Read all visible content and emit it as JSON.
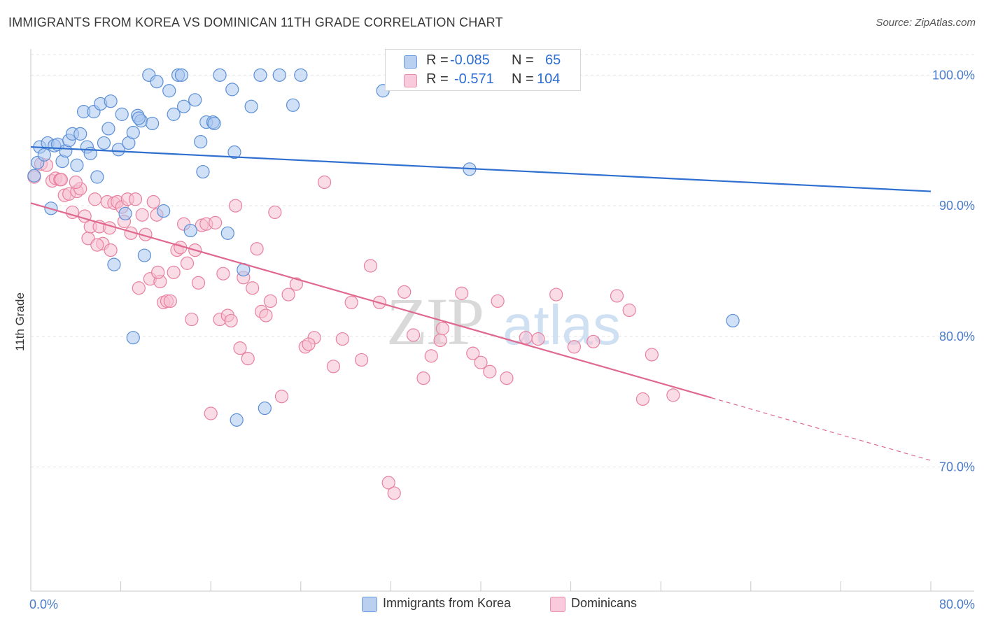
{
  "title": "IMMIGRANTS FROM KOREA VS DOMINICAN 11TH GRADE CORRELATION CHART",
  "source": "Source: ZipAtlas.com",
  "watermark_zip": "ZIP",
  "watermark_atlas": "atlas",
  "legend_top": {
    "rows": [
      {
        "r_label": "R =",
        "r_value": "-0.085",
        "n_label": "N =",
        "n_value": "65"
      },
      {
        "r_label": "R =",
        "r_value": "-0.571",
        "n_label": "N =",
        "n_value": "104"
      }
    ]
  },
  "legend_bottom": {
    "items": [
      {
        "label": "Immigrants from Korea"
      },
      {
        "label": "Dominicans"
      }
    ]
  },
  "chart_data": {
    "type": "scatter",
    "title": "IMMIGRANTS FROM KOREA VS DOMINICAN 11TH GRADE CORRELATION CHART",
    "xlabel": "",
    "ylabel": "11th Grade",
    "xlim": [
      0,
      80
    ],
    "ylim": [
      60.5,
      102
    ],
    "x_tick_labels": [
      "0.0%",
      "80.0%"
    ],
    "y_ticks": [
      70,
      80,
      90,
      100
    ],
    "y_tick_labels": [
      "70.0%",
      "80.0%",
      "90.0%",
      "100.0%"
    ],
    "grid": true,
    "colors": {
      "korea_fill": "#a9c6ee",
      "korea_stroke": "#5b8fd6",
      "korea_line": "#2f6fcf",
      "dom_fill": "#f6bfd1",
      "dom_stroke": "#e8819f",
      "dom_line": "#e0688f",
      "tick_label": "#4a7cc9",
      "grid": "#e4e4e4"
    },
    "series": [
      {
        "name": "Immigrants from Korea",
        "r": -0.085,
        "n": 65,
        "trend": {
          "x0": 0,
          "y0": 94.5,
          "x1": 80,
          "y1": 91.1
        },
        "points": [
          [
            0.3,
            92.3
          ],
          [
            0.6,
            93.3
          ],
          [
            0.8,
            94.5
          ],
          [
            1.2,
            93.9
          ],
          [
            1.5,
            94.8
          ],
          [
            1.8,
            89.8
          ],
          [
            2.1,
            94.6
          ],
          [
            2.4,
            94.7
          ],
          [
            2.8,
            93.4
          ],
          [
            3.1,
            94.2
          ],
          [
            3.4,
            95.0
          ],
          [
            3.7,
            95.5
          ],
          [
            4.1,
            93.1
          ],
          [
            4.4,
            95.5
          ],
          [
            4.7,
            97.2
          ],
          [
            5.0,
            94.5
          ],
          [
            5.3,
            94.0
          ],
          [
            5.6,
            97.2
          ],
          [
            5.9,
            92.2
          ],
          [
            6.2,
            97.8
          ],
          [
            6.5,
            94.8
          ],
          [
            6.9,
            95.9
          ],
          [
            7.1,
            98.0
          ],
          [
            7.4,
            85.5
          ],
          [
            7.8,
            94.3
          ],
          [
            8.1,
            97.0
          ],
          [
            8.4,
            89.4
          ],
          [
            8.7,
            94.8
          ],
          [
            9.1,
            95.6
          ],
          [
            9.5,
            96.9
          ],
          [
            9.8,
            96.5
          ],
          [
            10.1,
            86.2
          ],
          [
            10.5,
            100.0
          ],
          [
            10.8,
            96.3
          ],
          [
            11.2,
            99.5
          ],
          [
            11.8,
            89.6
          ],
          [
            12.3,
            98.8
          ],
          [
            12.7,
            97.0
          ],
          [
            13.1,
            100.0
          ],
          [
            13.6,
            97.6
          ],
          [
            14.2,
            88.1
          ],
          [
            14.6,
            98.1
          ],
          [
            15.1,
            94.9
          ],
          [
            15.6,
            96.4
          ],
          [
            16.2,
            96.4
          ],
          [
            16.8,
            100.0
          ],
          [
            17.5,
            87.9
          ],
          [
            18.1,
            94.1
          ],
          [
            18.9,
            85.1
          ],
          [
            19.6,
            97.6
          ],
          [
            20.8,
            74.5
          ],
          [
            22.1,
            100.0
          ],
          [
            23.3,
            97.7
          ],
          [
            24.0,
            100.0
          ],
          [
            31.3,
            98.8
          ],
          [
            39.0,
            92.8
          ],
          [
            62.4,
            81.2
          ],
          [
            9.1,
            79.9
          ],
          [
            18.3,
            73.6
          ],
          [
            15.3,
            92.6
          ],
          [
            17.9,
            98.9
          ],
          [
            16.3,
            96.3
          ],
          [
            9.6,
            96.7
          ],
          [
            13.4,
            100.0
          ],
          [
            20.4,
            100.0
          ]
        ]
      },
      {
        "name": "Dominicans",
        "r": -0.571,
        "n": 104,
        "trend": {
          "x0": 0,
          "y0": 90.2,
          "x1": 60.5,
          "y1": 75.3,
          "dash_to_x": 80,
          "dash_to_y": 70.5
        },
        "points": [
          [
            0.3,
            92.2
          ],
          [
            0.9,
            93.2
          ],
          [
            1.4,
            93.1
          ],
          [
            1.9,
            91.9
          ],
          [
            2.2,
            92.1
          ],
          [
            2.6,
            92.0
          ],
          [
            3.0,
            90.8
          ],
          [
            3.4,
            90.9
          ],
          [
            3.7,
            89.5
          ],
          [
            4.1,
            91.1
          ],
          [
            4.4,
            91.3
          ],
          [
            4.8,
            89.2
          ],
          [
            5.1,
            87.5
          ],
          [
            5.3,
            88.4
          ],
          [
            5.7,
            90.5
          ],
          [
            6.1,
            88.4
          ],
          [
            6.4,
            87.1
          ],
          [
            6.8,
            90.3
          ],
          [
            7.1,
            86.6
          ],
          [
            7.4,
            90.2
          ],
          [
            7.7,
            90.3
          ],
          [
            8.1,
            89.9
          ],
          [
            8.3,
            88.8
          ],
          [
            8.6,
            90.5
          ],
          [
            8.9,
            87.9
          ],
          [
            9.3,
            90.5
          ],
          [
            9.6,
            83.7
          ],
          [
            9.9,
            89.3
          ],
          [
            10.2,
            87.8
          ],
          [
            10.6,
            84.4
          ],
          [
            10.9,
            90.3
          ],
          [
            11.2,
            89.3
          ],
          [
            11.5,
            84.2
          ],
          [
            11.8,
            82.6
          ],
          [
            12.1,
            82.7
          ],
          [
            12.4,
            82.7
          ],
          [
            12.7,
            84.9
          ],
          [
            13.0,
            86.6
          ],
          [
            13.3,
            86.8
          ],
          [
            13.6,
            88.6
          ],
          [
            13.9,
            85.6
          ],
          [
            14.3,
            81.3
          ],
          [
            14.6,
            86.6
          ],
          [
            14.9,
            84.1
          ],
          [
            15.2,
            88.5
          ],
          [
            15.6,
            88.6
          ],
          [
            16.0,
            74.1
          ],
          [
            16.4,
            88.7
          ],
          [
            16.8,
            81.3
          ],
          [
            17.1,
            84.8
          ],
          [
            17.5,
            81.6
          ],
          [
            17.8,
            81.2
          ],
          [
            18.2,
            90.0
          ],
          [
            18.6,
            79.1
          ],
          [
            18.9,
            84.5
          ],
          [
            19.3,
            78.3
          ],
          [
            19.7,
            83.7
          ],
          [
            20.1,
            86.7
          ],
          [
            20.5,
            81.9
          ],
          [
            20.9,
            81.6
          ],
          [
            21.3,
            82.7
          ],
          [
            21.7,
            89.5
          ],
          [
            22.3,
            75.4
          ],
          [
            22.9,
            83.2
          ],
          [
            23.6,
            84.0
          ],
          [
            24.4,
            79.2
          ],
          [
            25.2,
            79.9
          ],
          [
            26.1,
            91.8
          ],
          [
            26.9,
            77.7
          ],
          [
            27.7,
            79.8
          ],
          [
            28.5,
            82.6
          ],
          [
            29.4,
            78.2
          ],
          [
            30.2,
            85.4
          ],
          [
            31.0,
            82.6
          ],
          [
            31.8,
            68.8
          ],
          [
            32.3,
            68.0
          ],
          [
            33.2,
            83.4
          ],
          [
            34.0,
            80.1
          ],
          [
            34.9,
            76.8
          ],
          [
            35.6,
            78.5
          ],
          [
            36.6,
            80.6
          ],
          [
            38.3,
            83.3
          ],
          [
            39.3,
            78.7
          ],
          [
            40.0,
            78.0
          ],
          [
            40.8,
            77.3
          ],
          [
            41.5,
            82.7
          ],
          [
            42.3,
            76.8
          ],
          [
            44.0,
            79.9
          ],
          [
            45.1,
            79.8
          ],
          [
            46.7,
            83.2
          ],
          [
            48.3,
            79.2
          ],
          [
            50.0,
            79.6
          ],
          [
            52.1,
            83.1
          ],
          [
            53.2,
            82.0
          ],
          [
            54.4,
            75.2
          ],
          [
            55.2,
            78.6
          ],
          [
            57.1,
            75.5
          ],
          [
            7.0,
            88.3
          ],
          [
            11.3,
            84.9
          ],
          [
            5.9,
            87.0
          ],
          [
            2.7,
            92.0
          ],
          [
            4.0,
            91.8
          ],
          [
            36.4,
            79.7
          ],
          [
            24.7,
            79.4
          ]
        ]
      }
    ]
  }
}
